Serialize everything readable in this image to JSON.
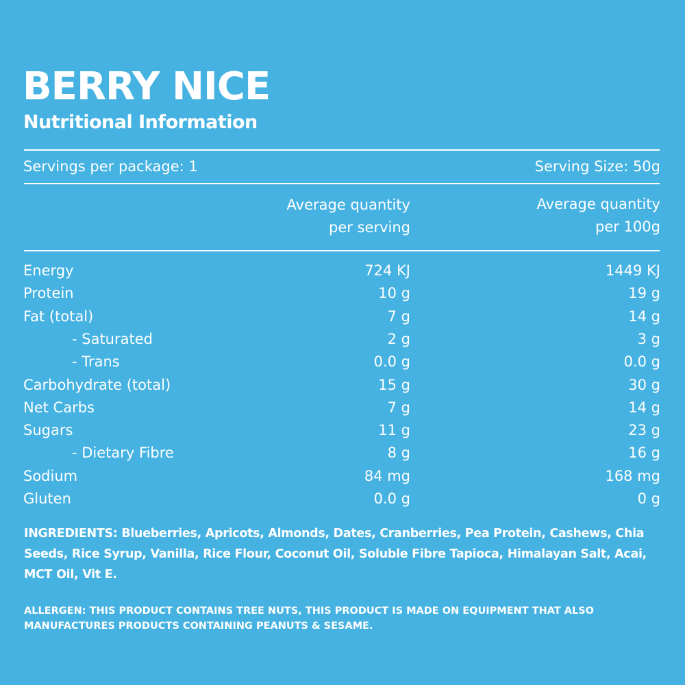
{
  "header": {
    "title": "BERRY NICE",
    "subtitle": "Nutritional Information"
  },
  "servings": {
    "per_package": "Servings per package: 1",
    "serving_size": "Serving Size: 50g"
  },
  "table": {
    "columns": [
      [
        "Average quantity",
        "per serving"
      ],
      [
        "Average quantity",
        "per 100g"
      ]
    ],
    "rows": [
      [
        "Energy",
        "724 KJ",
        "1449 KJ"
      ],
      [
        "Protein",
        "10 g",
        "19 g"
      ],
      [
        "Fat (total)",
        "7 g",
        "14 g"
      ],
      [
        "- Saturated",
        "2 g",
        "3 g"
      ],
      [
        "- Trans",
        "0.0 g",
        "0.0 g"
      ],
      [
        "Carbohydrate (total)",
        "15 g",
        "30 g"
      ],
      [
        "Net Carbs",
        "7 g",
        "14 g"
      ],
      [
        "Sugars",
        "11 g",
        "23 g"
      ],
      [
        "- Dietary Fibre",
        "8 g",
        "16 g"
      ],
      [
        "Sodium",
        "84 mg",
        "168 mg"
      ],
      [
        "Gluten",
        "0.0 g",
        "0 g"
      ]
    ]
  },
  "ingredients": "INGREDIENTS: Blueberries, Apricots, Almonds, Dates, Cranberries, Pea Protein, Cashews, Chia Seeds, Rice Syrup, Vanilla, Rice Flour, Coconut Oil, Soluble Fibre Tapioca, Himalayan Salt, Acai, MCT Oil, Vit E.",
  "allergen": "ALLERGEN: THIS PRODUCT CONTAINS TREE NUTS, THIS PRODUCT IS MADE ON EQUIPMENT THAT ALSO MANUFACTURES PRODUCTS CONTAINING PEANUTS & SESAME."
}
